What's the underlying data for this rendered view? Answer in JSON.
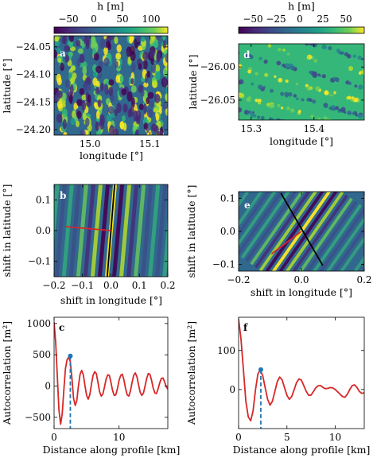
{
  "figure": {
    "colorbar_label": "h [m]",
    "colorbar_left_ticks": [
      "−50",
      "0",
      "50",
      "100"
    ],
    "colorbar_right_ticks": [
      "−50",
      "−25",
      "0",
      "25",
      "50"
    ],
    "panel_labels": [
      "a",
      "b",
      "c",
      "d",
      "e",
      "f"
    ],
    "axis_labels": {
      "longitude": "longitude [°]",
      "latitude": "latitude [°]",
      "shift_lon": "shift in longitude [°]",
      "shift_lat": "shift in latitude [°]",
      "distance": "Distance along profile [km]",
      "autocorr": "Autocorrelation [m²]"
    },
    "colors": {
      "curve": "#d62728",
      "marker": "#1f77b4",
      "line_black": "#000000"
    }
  },
  "chart_data": [
    {
      "id": "a",
      "type": "heatmap",
      "xlabel": "longitude [°]",
      "ylabel": "latitude [°]",
      "xlim": [
        14.94,
        15.13
      ],
      "ylim": [
        -24.21,
        -24.03
      ],
      "xticks": [
        "15.0",
        "15.1"
      ],
      "yticks": [
        "−24.05",
        "−24.10",
        "−24.15",
        "−24.20"
      ],
      "colorbar": {
        "label": "h [m]",
        "range": [
          -70,
          130
        ],
        "ticks": [
          -50,
          0,
          50,
          100
        ]
      }
    },
    {
      "id": "d",
      "type": "heatmap",
      "xlabel": "longitude [°]",
      "ylabel": "latitude [°]",
      "xlim": [
        15.28,
        15.48
      ],
      "ylim": [
        -26.08,
        -25.965
      ],
      "xticks": [
        "15.3",
        "15.4"
      ],
      "yticks": [
        "−26.00",
        "−26.05"
      ],
      "colorbar": {
        "label": "h [m]",
        "range": [
          -70,
          75
        ],
        "ticks": [
          -50,
          -25,
          0,
          25,
          50
        ]
      }
    },
    {
      "id": "b",
      "type": "heatmap",
      "xlabel": "shift in longitude [°]",
      "ylabel": "shift in latitude [°]",
      "xlim": [
        -0.2,
        0.2
      ],
      "ylim": [
        -0.15,
        0.15
      ],
      "xticks": [
        "−0.2",
        "−0.1",
        "0.0",
        "0.1",
        "0.2"
      ],
      "yticks": [
        "0.1",
        "0.0",
        "−0.1"
      ],
      "black_line": [
        [
          0.013,
          0.15
        ],
        [
          -0.013,
          -0.15
        ]
      ],
      "red_line": [
        [
          0.0,
          0.0
        ],
        [
          -0.16,
          0.013
        ]
      ]
    },
    {
      "id": "e",
      "type": "heatmap",
      "xlabel": "shift in longitude [°]",
      "ylabel": "shift in latitude [°]",
      "xlim": [
        -0.2,
        0.2
      ],
      "ylim": [
        -0.12,
        0.12
      ],
      "xticks": [
        "−0.2",
        "0.0",
        "0.2"
      ],
      "yticks": [
        "0.1",
        "0.0",
        "−0.1"
      ],
      "black_line": [
        [
          -0.065,
          0.115
        ],
        [
          0.068,
          -0.103
        ]
      ],
      "red_line": [
        [
          0.0,
          0.0
        ],
        [
          -0.095,
          -0.068
        ]
      ]
    },
    {
      "id": "c",
      "type": "line",
      "xlabel": "Distance along profile [km]",
      "ylabel": "Autocorrelation [m²]",
      "xlim": [
        0,
        17.5
      ],
      "ylim": [
        -680,
        1100
      ],
      "xticks": [
        0,
        10
      ],
      "yticks": [
        1000,
        500,
        0,
        -500
      ],
      "x": [
        0,
        0.25,
        0.5,
        0.75,
        1.0,
        1.25,
        1.5,
        1.75,
        2.0,
        2.25,
        2.5,
        2.75,
        3.0,
        3.25,
        3.5,
        3.75,
        4.0,
        4.25,
        4.5,
        4.75,
        5.0,
        5.25,
        5.5,
        5.75,
        6.0,
        6.25,
        6.5,
        6.75,
        7.0,
        7.25,
        7.5,
        7.75,
        8.0,
        8.25,
        8.5,
        8.75,
        9.0,
        9.25,
        9.5,
        9.75,
        10.0,
        10.25,
        10.5,
        10.75,
        11.0,
        11.25,
        11.5,
        11.75,
        12.0,
        12.25,
        12.5,
        12.75,
        13.0,
        13.25,
        13.5,
        13.75,
        14.0,
        14.25,
        14.5,
        14.75,
        15.0,
        15.25,
        15.5,
        15.75,
        16.0,
        16.25,
        16.5,
        16.75,
        17.0,
        17.25,
        17.5
      ],
      "y": [
        1020,
        700,
        150,
        -380,
        -610,
        -450,
        -60,
        280,
        420,
        460,
        390,
        120,
        -200,
        -310,
        -230,
        0,
        190,
        250,
        180,
        10,
        -150,
        -210,
        -140,
        30,
        170,
        230,
        200,
        60,
        -90,
        -160,
        -130,
        -20,
        110,
        180,
        170,
        60,
        -70,
        -150,
        -140,
        -40,
        90,
        170,
        190,
        100,
        -40,
        -140,
        -160,
        -80,
        60,
        170,
        210,
        150,
        20,
        -100,
        -150,
        -110,
        0,
        120,
        200,
        190,
        90,
        -30,
        -110,
        -120,
        -50,
        50,
        120,
        130,
        70,
        -10,
        -50
      ],
      "marker": {
        "x": 2.5,
        "y": 480
      }
    },
    {
      "id": "f",
      "type": "line",
      "xlabel": "Distance along profile [km]",
      "ylabel": "Autocorrelation [m²]",
      "xlim": [
        0,
        13
      ],
      "ylim": [
        -100,
        185
      ],
      "xticks": [
        0,
        5,
        10
      ],
      "yticks": [
        100,
        0
      ],
      "x": [
        0,
        0.25,
        0.5,
        0.75,
        1.0,
        1.25,
        1.5,
        1.75,
        2.0,
        2.25,
        2.5,
        2.75,
        3.0,
        3.25,
        3.5,
        3.75,
        4.0,
        4.25,
        4.5,
        4.75,
        5.0,
        5.25,
        5.5,
        5.75,
        6.0,
        6.25,
        6.5,
        6.75,
        7.0,
        7.25,
        7.5,
        7.75,
        8.0,
        8.25,
        8.5,
        8.75,
        9.0,
        9.25,
        9.5,
        9.75,
        10.0,
        10.25,
        10.5,
        10.75,
        11.0,
        11.25,
        11.5,
        11.75,
        12.0,
        12.25,
        12.5,
        12.75,
        13.0
      ],
      "y": [
        180,
        130,
        50,
        -30,
        -70,
        -80,
        -55,
        0,
        40,
        50,
        35,
        5,
        -25,
        -40,
        -30,
        -5,
        20,
        32,
        25,
        5,
        -15,
        -25,
        -18,
        0,
        18,
        27,
        24,
        10,
        -5,
        -15,
        -14,
        -5,
        5,
        10,
        10,
        5,
        2,
        3,
        5,
        4,
        0,
        -6,
        -12,
        -18,
        -20,
        -12,
        0,
        10,
        12,
        5,
        -5,
        -10,
        -8
      ],
      "marker": {
        "x": 2.3,
        "y": 51
      }
    }
  ]
}
